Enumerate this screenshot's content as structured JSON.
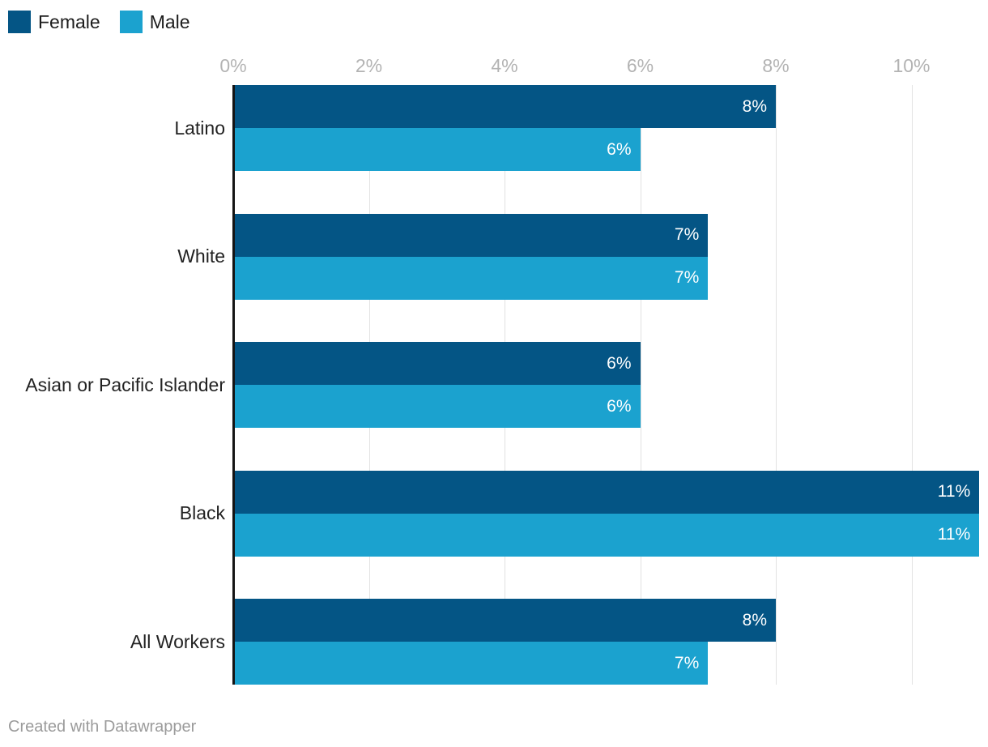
{
  "legend": {
    "items": [
      {
        "label": "Female",
        "color": "#045585"
      },
      {
        "label": "Male",
        "color": "#1ba2cf"
      }
    ]
  },
  "footer": {
    "text": "Created with Datawrapper"
  },
  "colors": {
    "female_bar": "#045585",
    "male_bar": "#1ba2cf",
    "gridline": "#e2e2e2",
    "axis_line": "#141414",
    "tick_label": "#b3b3b3",
    "category_label": "#222222",
    "bar_value_label": "#ffffff"
  },
  "chart_data": {
    "type": "bar",
    "orientation": "horizontal",
    "title": "",
    "xlabel": "",
    "ylabel": "",
    "categories": [
      "Latino",
      "White",
      "Asian or Pacific Islander",
      "Black",
      "All Workers"
    ],
    "series": [
      {
        "name": "Female",
        "color": "#045585",
        "values": [
          8,
          7,
          6,
          11,
          8
        ]
      },
      {
        "name": "Male",
        "color": "#1ba2cf",
        "values": [
          6,
          7,
          6,
          11,
          7
        ]
      }
    ],
    "bar_labels": [
      [
        "8%",
        "6%"
      ],
      [
        "7%",
        "7%"
      ],
      [
        "6%",
        "6%"
      ],
      [
        "11%",
        "11%"
      ],
      [
        "8%",
        "7%"
      ]
    ],
    "x_tick_labels": [
      "0%",
      "2%",
      "4%",
      "6%",
      "8%",
      "10%"
    ],
    "x_tick_values": [
      0,
      2,
      4,
      6,
      8,
      10
    ],
    "xlim": [
      0,
      11.1
    ],
    "grid": true,
    "legend_position": "top-left",
    "value_suffix": "%"
  }
}
